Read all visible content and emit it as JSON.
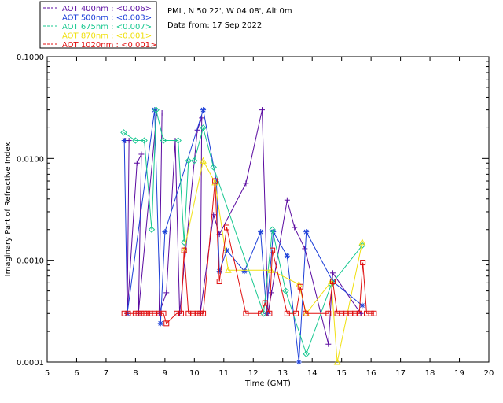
{
  "chart_data": {
    "type": "line",
    "title_lines": [
      "PML, N 50 22', W 04 08', Alt 0m",
      "Data from: 17 Sep 2022"
    ],
    "xlabel": "Time (GMT)",
    "ylabel": "Imaginary Part of Refractive Index",
    "xlim": [
      5,
      20
    ],
    "ylim": [
      0.0001,
      0.1
    ],
    "yscale": "log",
    "x_ticks": [
      "5",
      "6",
      "7",
      "8",
      "9",
      "10",
      "11",
      "12",
      "13",
      "14",
      "15",
      "16",
      "17",
      "18",
      "19",
      "20"
    ],
    "y_ticks": [
      "0.0001",
      "0.0010",
      "0.0100",
      "0.1000"
    ],
    "legend_position": "top-left",
    "series": [
      {
        "name": "AOT  400nm : <0.006>",
        "color": "#5a0aa0",
        "marker": "plus",
        "points": [
          [
            7.65,
            0.015
          ],
          [
            7.78,
            0.015
          ],
          [
            7.72,
            0.0003
          ],
          [
            8.05,
            0.009
          ],
          [
            8.2,
            0.011
          ],
          [
            8.1,
            0.0003
          ],
          [
            8.72,
            0.028
          ],
          [
            8.9,
            0.028
          ],
          [
            8.8,
            0.0003
          ],
          [
            9.05,
            0.00048
          ],
          [
            9.35,
            0.015
          ],
          [
            9.5,
            0.0003
          ],
          [
            10.1,
            0.019
          ],
          [
            10.25,
            0.025
          ],
          [
            10.2,
            0.0003
          ],
          [
            10.65,
            0.0028
          ],
          [
            10.85,
            0.0018
          ],
          [
            11.75,
            0.0057
          ],
          [
            12.3,
            0.03
          ],
          [
            12.5,
            0.0003
          ],
          [
            12.62,
            0.00048
          ],
          [
            13.15,
            0.0039
          ],
          [
            13.4,
            0.0021
          ],
          [
            13.75,
            0.0013
          ],
          [
            14.55,
            0.00015
          ],
          [
            14.7,
            0.00075
          ],
          [
            15.65,
            0.0003
          ]
        ]
      },
      {
        "name": "AOT  500nm : <0.003>",
        "color": "#1c3fd8",
        "marker": "star",
        "points": [
          [
            7.62,
            0.015
          ],
          [
            7.72,
            0.0003
          ],
          [
            8.65,
            0.03
          ],
          [
            8.85,
            0.00024
          ],
          [
            9.0,
            0.0019
          ],
          [
            10.3,
            0.03
          ],
          [
            10.75,
            0.0059
          ],
          [
            10.85,
            0.00078
          ],
          [
            11.1,
            0.00125
          ],
          [
            11.7,
            0.00078
          ],
          [
            12.25,
            0.0019
          ],
          [
            12.45,
            0.0003
          ],
          [
            12.68,
            0.0019
          ],
          [
            13.15,
            0.0011
          ],
          [
            13.55,
            0.0001
          ],
          [
            13.8,
            0.0019
          ],
          [
            14.7,
            0.00062
          ],
          [
            15.7,
            0.00036
          ]
        ]
      },
      {
        "name": "AOT  675nm : <0.007>",
        "color": "#18c890",
        "marker": "diamond",
        "points": [
          [
            7.6,
            0.018
          ],
          [
            8.0,
            0.015
          ],
          [
            8.3,
            0.015
          ],
          [
            8.55,
            0.002
          ],
          [
            8.7,
            0.03
          ],
          [
            8.95,
            0.015
          ],
          [
            9.45,
            0.015
          ],
          [
            9.65,
            0.0015
          ],
          [
            9.8,
            0.0095
          ],
          [
            10.0,
            0.0095
          ],
          [
            10.3,
            0.02
          ],
          [
            10.65,
            0.0082
          ],
          [
            12.35,
            0.0003
          ],
          [
            12.65,
            0.002
          ],
          [
            13.1,
            0.0005
          ],
          [
            13.8,
            0.00012
          ],
          [
            14.65,
            0.00058
          ],
          [
            15.7,
            0.0014
          ]
        ]
      },
      {
        "name": "AOT  870nm : <0.001>",
        "color": "#f0e010",
        "marker": "triangle",
        "points": [
          [
            9.65,
            0.00125
          ],
          [
            10.3,
            0.0095
          ],
          [
            10.7,
            0.0058
          ],
          [
            11.15,
            0.0008
          ],
          [
            12.6,
            0.0008
          ],
          [
            13.55,
            0.00058
          ],
          [
            13.8,
            0.0003
          ],
          [
            14.65,
            0.00062
          ],
          [
            14.85,
            0.0001
          ],
          [
            15.7,
            0.0015
          ]
        ]
      },
      {
        "name": "AOT 1020nm : <0.001>",
        "color": "#e01010",
        "marker": "square",
        "points": [
          [
            7.62,
            0.0003
          ],
          [
            7.75,
            0.0003
          ],
          [
            8.0,
            0.0003
          ],
          [
            8.1,
            0.0003
          ],
          [
            8.2,
            0.0003
          ],
          [
            8.3,
            0.0003
          ],
          [
            8.4,
            0.0003
          ],
          [
            8.5,
            0.0003
          ],
          [
            8.65,
            0.0003
          ],
          [
            8.8,
            0.0003
          ],
          [
            8.95,
            0.0003
          ],
          [
            9.05,
            0.00024
          ],
          [
            9.4,
            0.0003
          ],
          [
            9.55,
            0.0003
          ],
          [
            9.65,
            0.00125
          ],
          [
            9.8,
            0.0003
          ],
          [
            9.95,
            0.0003
          ],
          [
            10.1,
            0.0003
          ],
          [
            10.2,
            0.0003
          ],
          [
            10.3,
            0.0003
          ],
          [
            10.7,
            0.006
          ],
          [
            10.85,
            0.00062
          ],
          [
            11.1,
            0.0021
          ],
          [
            11.75,
            0.0003
          ],
          [
            12.25,
            0.0003
          ],
          [
            12.4,
            0.00038
          ],
          [
            12.55,
            0.0003
          ],
          [
            12.65,
            0.00125
          ],
          [
            13.15,
            0.0003
          ],
          [
            13.45,
            0.0003
          ],
          [
            13.6,
            0.00055
          ],
          [
            13.78,
            0.0003
          ],
          [
            14.55,
            0.0003
          ],
          [
            14.7,
            0.00062
          ],
          [
            14.85,
            0.0003
          ],
          [
            15.0,
            0.0003
          ],
          [
            15.15,
            0.0003
          ],
          [
            15.3,
            0.0003
          ],
          [
            15.45,
            0.0003
          ],
          [
            15.6,
            0.0003
          ],
          [
            15.72,
            0.00095
          ],
          [
            15.85,
            0.0003
          ],
          [
            16.0,
            0.0003
          ],
          [
            16.1,
            0.0003
          ]
        ]
      }
    ]
  }
}
